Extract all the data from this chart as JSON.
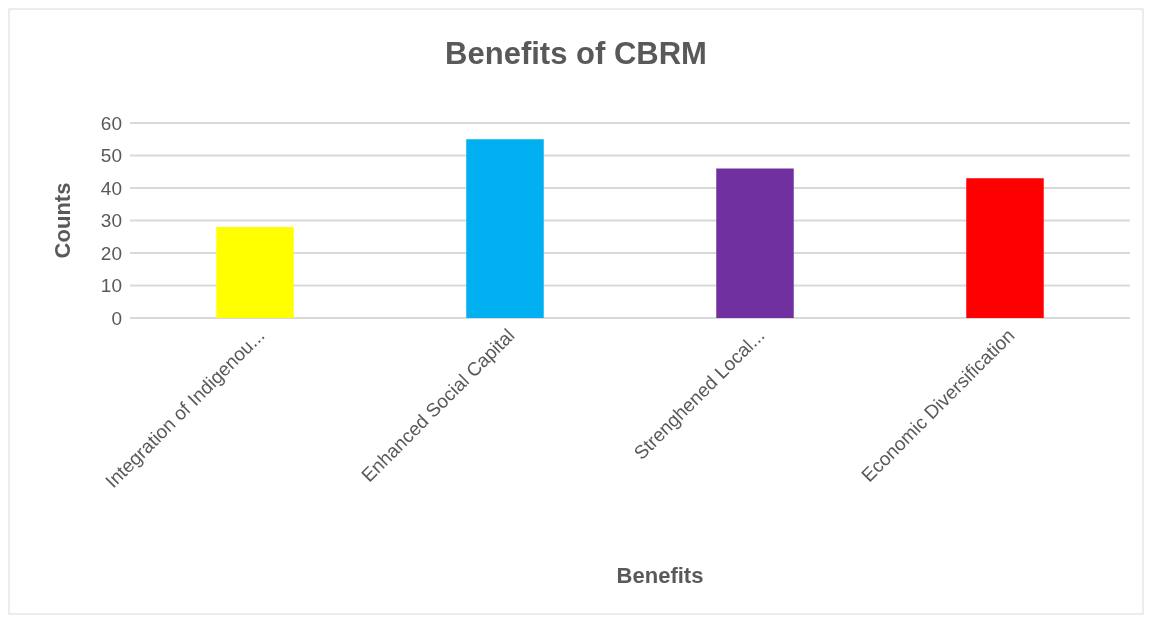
{
  "chart_data": {
    "type": "bar",
    "title": "Benefits of CBRM",
    "xlabel": "Benefits",
    "ylabel": "Counts",
    "categories": [
      "Integration of Indigenou...",
      "Enhanced Social Capital",
      "Strenghened Local...",
      "Economic Diversification"
    ],
    "values": [
      28,
      55,
      46,
      43
    ],
    "colors": [
      "#ffff00",
      "#00b0f0",
      "#7030a0",
      "#ff0000"
    ],
    "ylim": [
      0,
      60
    ],
    "yticks": [
      0,
      10,
      20,
      30,
      40,
      50,
      60
    ],
    "grid": "y"
  }
}
